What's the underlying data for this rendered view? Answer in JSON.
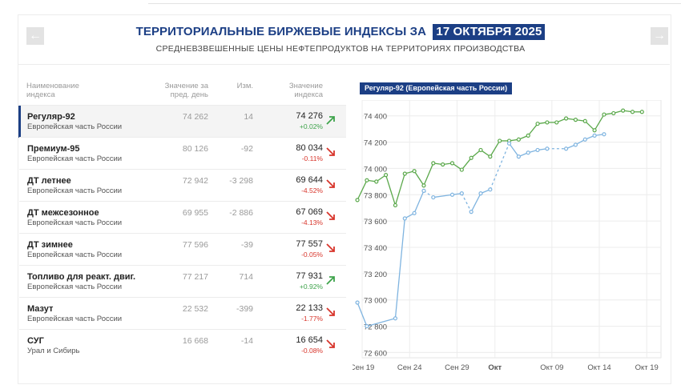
{
  "header": {
    "title": "ТЕРРИТОРИАЛЬНЫЕ БИРЖЕВЫЕ ИНДЕКСЫ ЗА",
    "date": "17 ОКТЯБРЯ 2025",
    "subtitle": "СРЕДНЕВЗВЕШЕННЫЕ ЦЕНЫ НЕФТЕПРОДУКТОВ НА ТЕРРИТОРИЯХ ПРОИЗВОДСТВА",
    "prev_icon": "chevron-left-icon",
    "next_icon": "chevron-right-icon"
  },
  "table": {
    "headers": {
      "name": "Наименование индекса",
      "prev": "Значение за пред. день",
      "change": "Изм.",
      "value": "Значение индекса"
    },
    "rows": [
      {
        "name": "Регуляр-92",
        "region": "Европейская часть России",
        "prev": "74 262",
        "change": "14",
        "value": "74 276",
        "pct": "+0.02%",
        "trend": "up"
      },
      {
        "name": "Премиум-95",
        "region": "Европейская часть России",
        "prev": "80 126",
        "change": "-92",
        "value": "80 034",
        "pct": "-0.11%",
        "trend": "down"
      },
      {
        "name": "ДТ летнее",
        "region": "Европейская часть России",
        "prev": "72 942",
        "change": "-3 298",
        "value": "69 644",
        "pct": "-4.52%",
        "trend": "down"
      },
      {
        "name": "ДТ межсезонное",
        "region": "Европейская часть России",
        "prev": "69 955",
        "change": "-2 886",
        "value": "67 069",
        "pct": "-4.13%",
        "trend": "down"
      },
      {
        "name": "ДТ зимнее",
        "region": "Европейская часть России",
        "prev": "77 596",
        "change": "-39",
        "value": "77 557",
        "pct": "-0.05%",
        "trend": "down"
      },
      {
        "name": "Топливо для реакт. двиг.",
        "region": "Европейская часть России",
        "prev": "77 217",
        "change": "714",
        "value": "77 931",
        "pct": "+0.92%",
        "trend": "up"
      },
      {
        "name": "Мазут",
        "region": "Европейская часть России",
        "prev": "22 532",
        "change": "-399",
        "value": "22 133",
        "pct": "-1.77%",
        "trend": "down"
      },
      {
        "name": "СУГ",
        "region": "Урал и Сибирь",
        "prev": "16 668",
        "change": "-14",
        "value": "16 654",
        "pct": "-0.08%",
        "trend": "down"
      }
    ]
  },
  "colors": {
    "brand": "#1c3f85",
    "up": "#3ea34b",
    "down": "#d8352b",
    "series_green": "#5aa84a",
    "series_blue": "#7fb4e0"
  },
  "chart_data": {
    "type": "line",
    "title": "Регуляр-92 (Европейская часть России)",
    "ylim": [
      72560,
      74520
    ],
    "yticks": [
      "72 600",
      "72 800",
      "73 000",
      "73 200",
      "73 400",
      "73 600",
      "73 800",
      "74 000",
      "74 200",
      "74 400"
    ],
    "xticks": [
      {
        "label": "Сен 19",
        "x": 0,
        "bold": false
      },
      {
        "label": "Сен 24",
        "x": 5,
        "bold": false
      },
      {
        "label": "Сен 29",
        "x": 10,
        "bold": false
      },
      {
        "label": "Окт",
        "x": 14,
        "bold": true
      },
      {
        "label": "Окт 09",
        "x": 20,
        "bold": false
      },
      {
        "label": "Окт 14",
        "x": 25,
        "bold": false
      },
      {
        "label": "Окт 19",
        "x": 30,
        "bold": false
      }
    ],
    "xlim": [
      0,
      31.5
    ],
    "grid": true,
    "series": [
      {
        "color": "#5aa84a",
        "points": [
          [
            -0.5,
            73760
          ],
          [
            0.5,
            73910
          ],
          [
            1.5,
            73900
          ],
          [
            2.5,
            73950
          ],
          [
            3.5,
            73720
          ],
          [
            4.5,
            73960
          ],
          [
            5.5,
            73980
          ],
          [
            6.5,
            73870
          ],
          [
            7.5,
            74040
          ],
          [
            8.5,
            74030
          ],
          [
            9.5,
            74040
          ],
          [
            10.5,
            73990
          ],
          [
            11.5,
            74080
          ],
          [
            12.5,
            74140
          ],
          [
            13.5,
            74090
          ],
          [
            14.5,
            74210
          ],
          [
            15.5,
            74210
          ],
          [
            16.5,
            74220
          ],
          [
            17.5,
            74250
          ],
          [
            18.5,
            74340
          ],
          [
            19.5,
            74350
          ],
          [
            20.5,
            74350
          ],
          [
            21.5,
            74380
          ],
          [
            22.5,
            74370
          ],
          [
            23.5,
            74360
          ],
          [
            24.5,
            74290
          ],
          [
            25.5,
            74410
          ],
          [
            26.5,
            74420
          ],
          [
            27.5,
            74440
          ],
          [
            28.5,
            74430
          ],
          [
            29.5,
            74430
          ]
        ],
        "dashed_after": null
      },
      {
        "color": "#7fb4e0",
        "points": [
          [
            -0.5,
            72980
          ],
          [
            0.5,
            72800
          ],
          [
            3.5,
            72860
          ],
          [
            4.5,
            73620
          ],
          [
            5.5,
            73660
          ],
          [
            6.5,
            73830
          ],
          [
            7.5,
            73780
          ],
          [
            9.5,
            73800
          ],
          [
            10.5,
            73810
          ],
          [
            11.5,
            73670
          ],
          [
            12.5,
            73810
          ],
          [
            13.5,
            73840
          ],
          [
            15.5,
            74190
          ],
          [
            16.5,
            74090
          ],
          [
            17.5,
            74120
          ],
          [
            18.5,
            74140
          ],
          [
            19.5,
            74150
          ],
          [
            21.5,
            74150
          ],
          [
            22.5,
            74180
          ],
          [
            23.5,
            74220
          ],
          [
            24.5,
            74250
          ],
          [
            25.5,
            74260
          ]
        ],
        "dashed_segments": [
          [
            6.5,
            7.5
          ],
          [
            10.5,
            11.5
          ],
          [
            13.5,
            15.5
          ],
          [
            19.5,
            21.5
          ]
        ]
      }
    ]
  }
}
